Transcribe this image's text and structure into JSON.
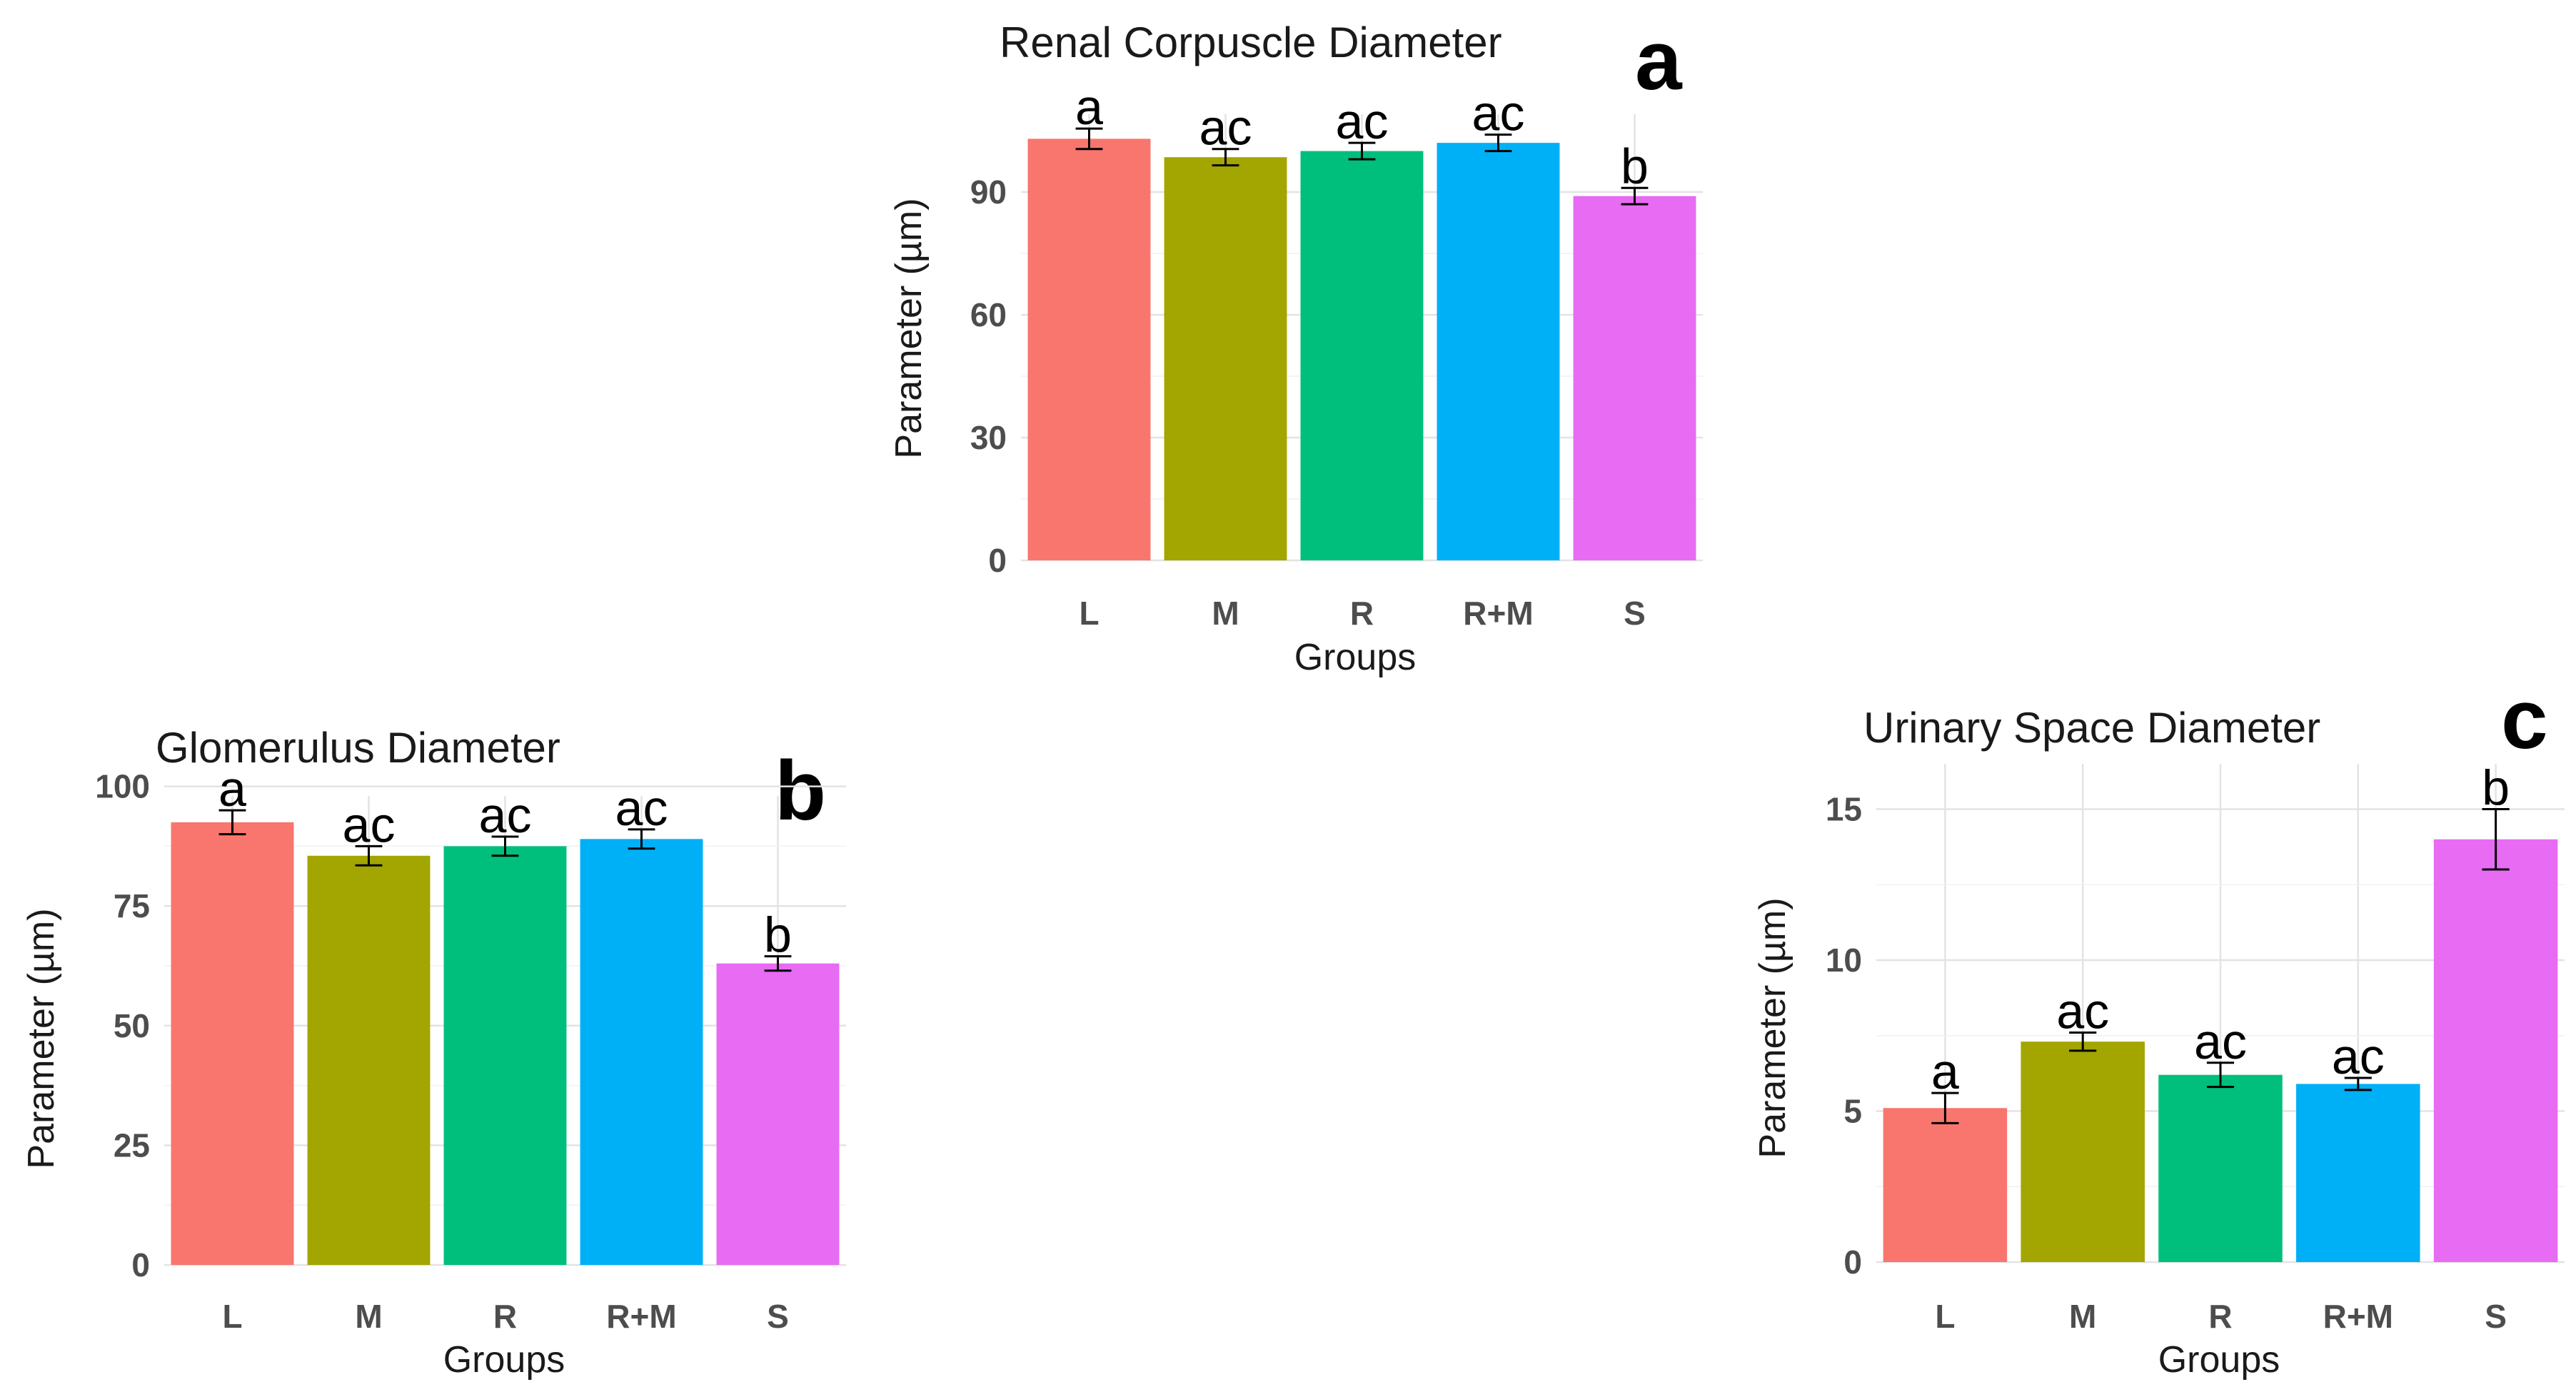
{
  "chart_data": [
    {
      "type": "bar",
      "panel_label": "a",
      "title": "Renal Corpuscle Diameter",
      "xlabel": "Groups",
      "ylabel": "Parameter (µm)",
      "categories": [
        "L",
        "M",
        "R",
        "R+M",
        "S"
      ],
      "values": [
        103,
        98.5,
        100,
        102,
        89
      ],
      "errors": [
        2.5,
        2,
        2,
        2,
        2
      ],
      "significance": [
        "a",
        "ac",
        "ac",
        "ac",
        "b"
      ],
      "colors": [
        "#F8766D",
        "#A3A500",
        "#00BF7D",
        "#00B0F6",
        "#E76BF3"
      ],
      "yticks": [
        0,
        30,
        60,
        90
      ],
      "ytick_labels": [
        "0",
        "30",
        "60",
        "90"
      ],
      "ylim": [
        0,
        109
      ],
      "grid": true
    },
    {
      "type": "bar",
      "panel_label": "b",
      "title": "Glomerulus Diameter",
      "xlabel": "Groups",
      "ylabel": "Parameter (µm)",
      "categories": [
        "L",
        "M",
        "R",
        "R+M",
        "S"
      ],
      "values": [
        92.5,
        85.5,
        87.5,
        89,
        63
      ],
      "errors": [
        2.5,
        2,
        2,
        2,
        1.5
      ],
      "significance": [
        "a",
        "ac",
        "ac",
        "ac",
        "b"
      ],
      "colors": [
        "#F8766D",
        "#A3A500",
        "#00BF7D",
        "#00B0F6",
        "#E76BF3"
      ],
      "yticks": [
        0,
        25,
        50,
        75,
        100
      ],
      "ytick_labels": [
        "0",
        "25",
        "50",
        "75",
        "100"
      ],
      "ylim": [
        0,
        98
      ],
      "grid": true
    },
    {
      "type": "bar",
      "panel_label": "c",
      "title": "Urinary Space Diameter",
      "xlabel": "Groups",
      "ylabel": "Parameter (µm)",
      "categories": [
        "L",
        "M",
        "R",
        "R+M",
        "S"
      ],
      "values": [
        5.1,
        7.3,
        6.2,
        5.9,
        14
      ],
      "errors": [
        0.5,
        0.3,
        0.4,
        0.2,
        1
      ],
      "significance": [
        "a",
        "ac",
        "ac",
        "ac",
        "b"
      ],
      "colors": [
        "#F8766D",
        "#A3A500",
        "#00BF7D",
        "#00B0F6",
        "#E76BF3"
      ],
      "yticks": [
        0,
        5,
        10,
        15
      ],
      "ytick_labels": [
        "0",
        "5",
        "10",
        "15"
      ],
      "ylim": [
        0,
        16.5
      ],
      "grid": true
    }
  ]
}
